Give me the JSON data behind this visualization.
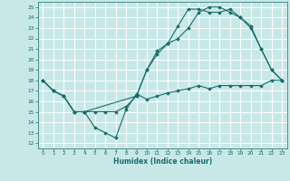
{
  "xlabel": "Humidex (Indice chaleur)",
  "bg_color": "#c8e8e8",
  "grid_color": "#ffffff",
  "line_color": "#1a6b6b",
  "xlim": [
    -0.5,
    23.5
  ],
  "ylim": [
    11.5,
    25.5
  ],
  "yticks": [
    12,
    13,
    14,
    15,
    16,
    17,
    18,
    19,
    20,
    21,
    22,
    23,
    24,
    25
  ],
  "xticks": [
    0,
    1,
    2,
    3,
    4,
    5,
    6,
    7,
    8,
    9,
    10,
    11,
    12,
    13,
    14,
    15,
    16,
    17,
    18,
    19,
    20,
    21,
    22,
    23
  ],
  "line1_x": [
    0,
    1,
    2,
    3,
    4,
    5,
    6,
    7,
    8,
    9,
    10,
    11,
    12,
    13,
    14,
    15,
    16,
    17,
    18,
    19,
    20,
    21,
    22,
    23
  ],
  "line1_y": [
    18,
    17,
    16.5,
    15,
    15,
    13.5,
    13,
    12.5,
    15.2,
    16.7,
    16.2,
    16.5,
    16.8,
    17.0,
    17.2,
    17.5,
    17.2,
    17.5,
    17.5,
    17.5,
    17.5,
    17.5,
    18,
    18
  ],
  "line2_x": [
    0,
    1,
    2,
    3,
    4,
    9,
    10,
    11,
    12,
    13,
    14,
    15,
    16,
    17,
    18,
    19,
    20,
    21,
    22,
    23
  ],
  "line2_y": [
    18,
    17,
    16.5,
    15,
    15,
    16.5,
    19.0,
    20.8,
    21.5,
    23.2,
    24.8,
    24.8,
    24.5,
    24.5,
    24.8,
    24.0,
    23.2,
    21.0,
    19.0,
    18.0
  ],
  "line3_x": [
    0,
    1,
    2,
    3,
    4,
    5,
    6,
    7,
    8,
    9,
    10,
    11,
    12,
    13,
    14,
    15,
    16,
    17,
    18,
    19,
    20,
    21,
    22,
    23
  ],
  "line3_y": [
    18,
    17,
    16.5,
    15,
    15,
    15,
    15,
    15,
    15.5,
    16.5,
    19,
    20.5,
    21.5,
    22,
    23,
    24.5,
    25,
    25,
    24.5,
    24,
    23,
    21,
    19,
    18
  ]
}
